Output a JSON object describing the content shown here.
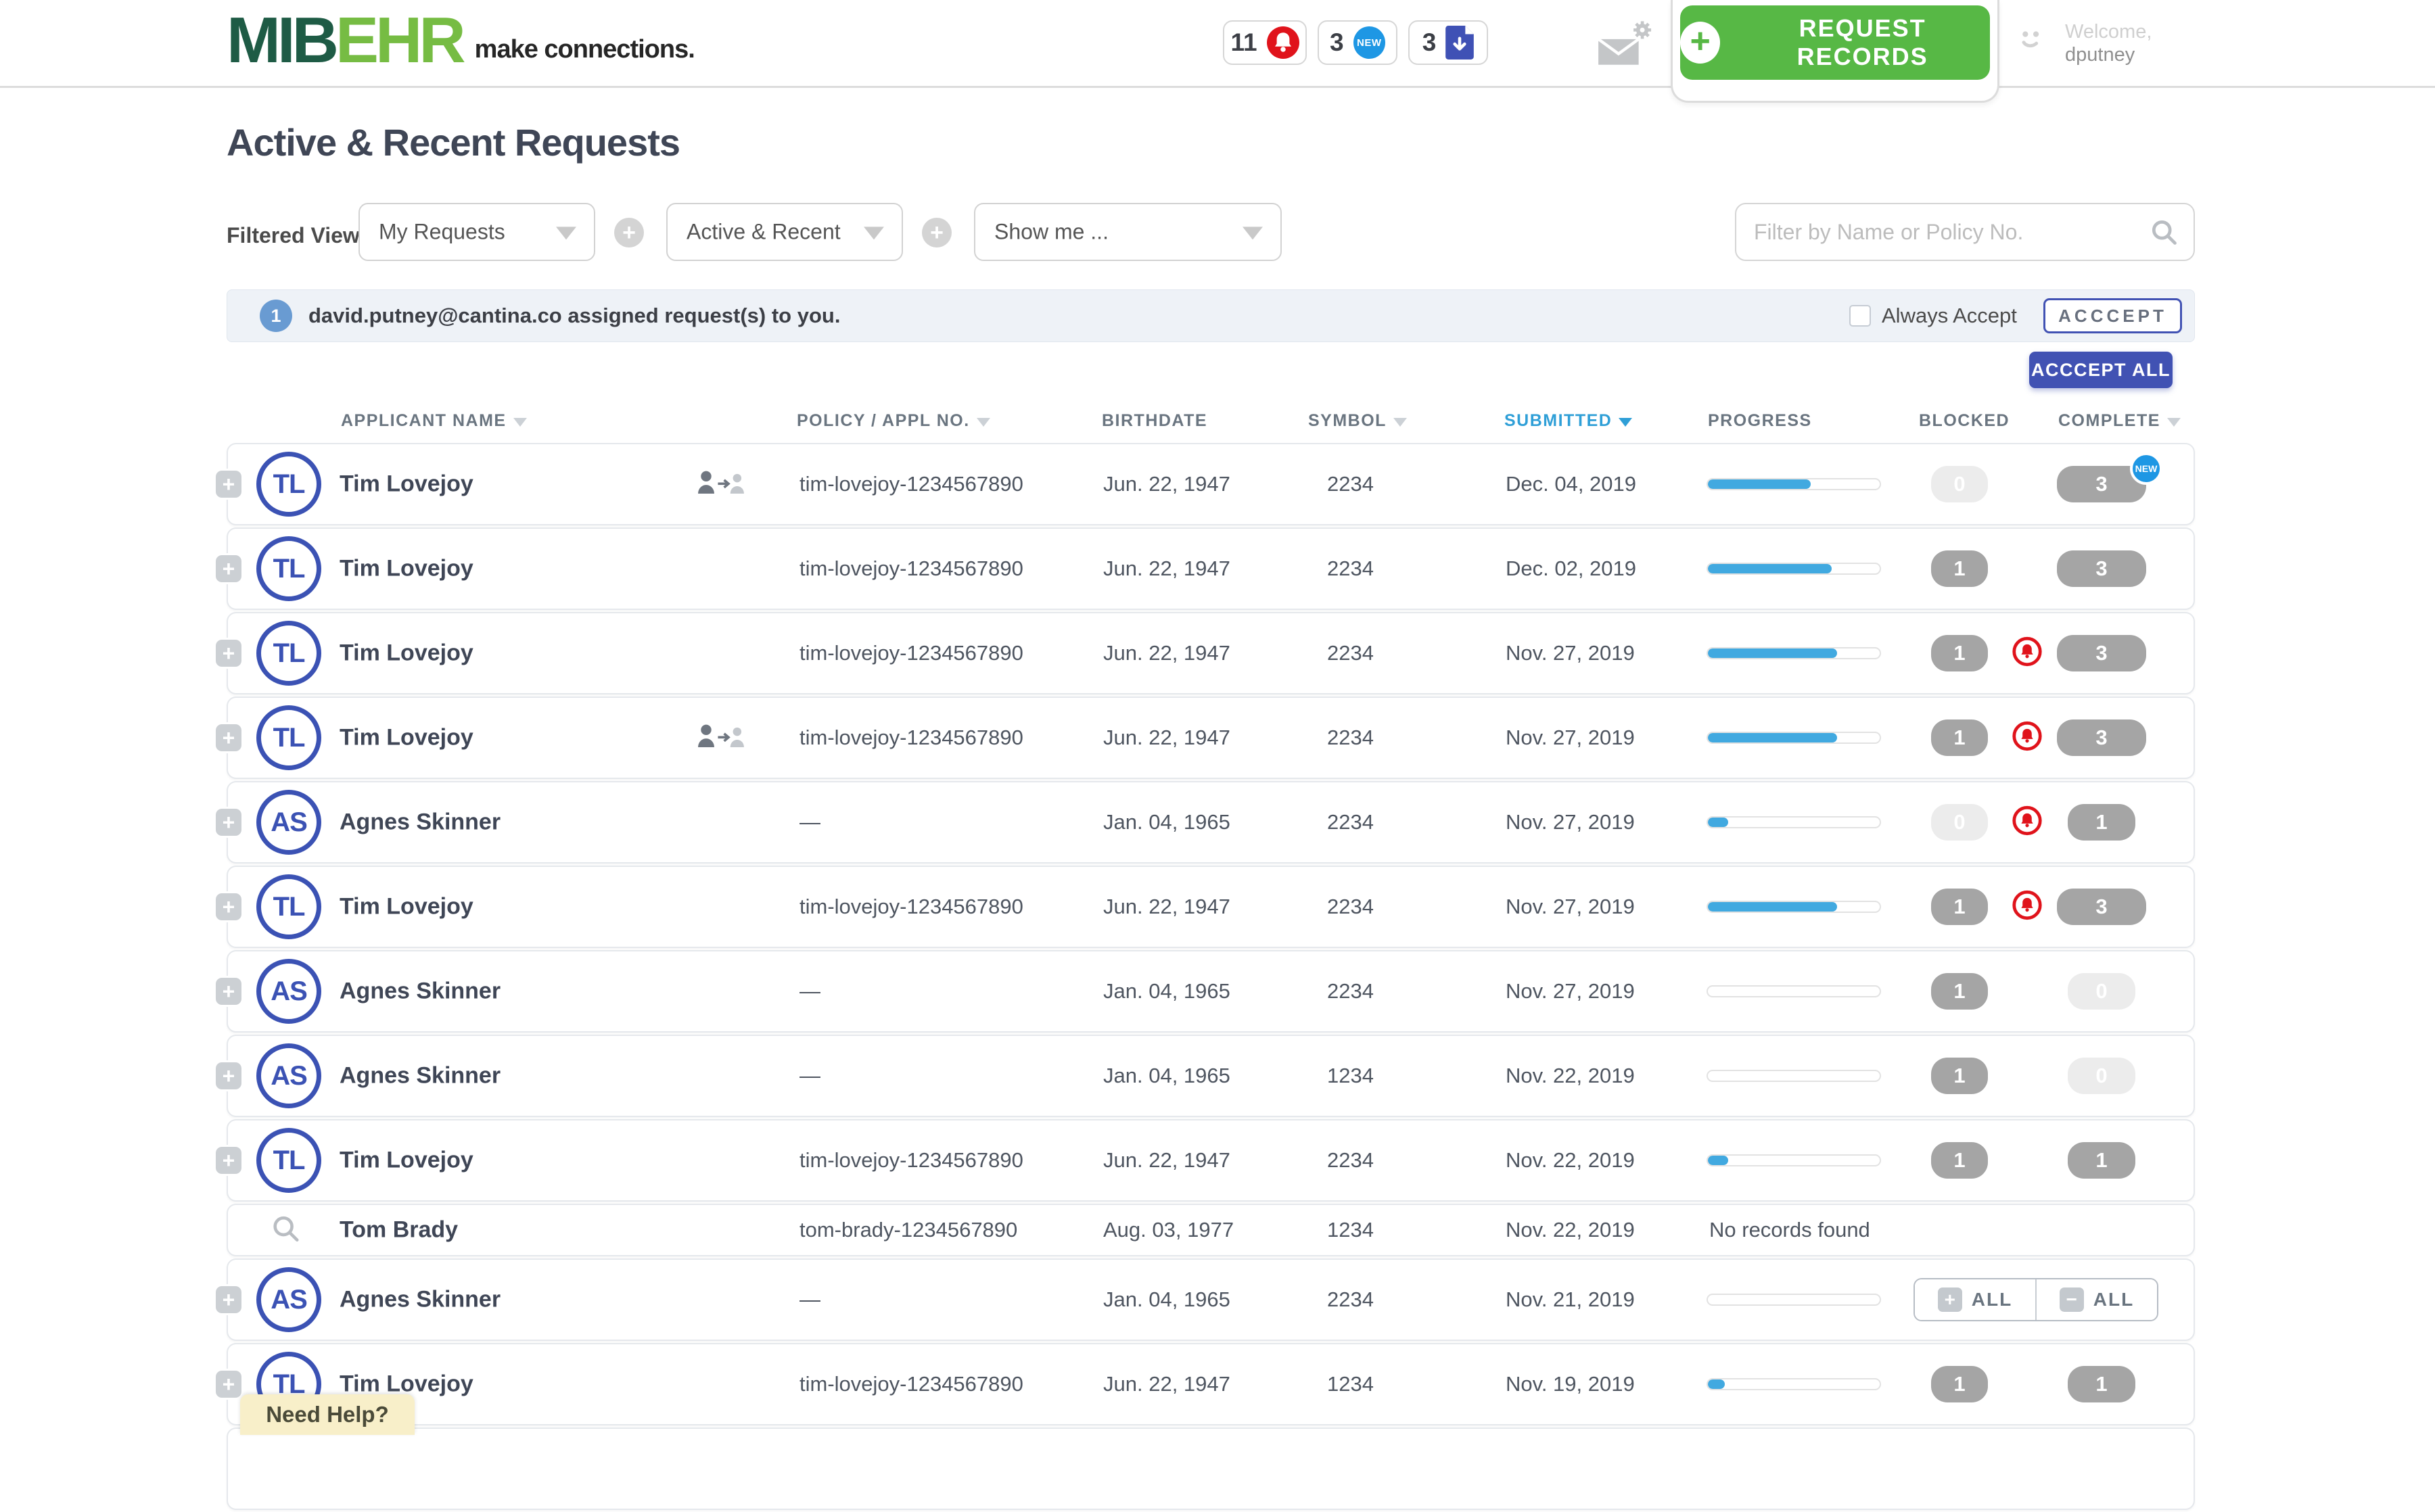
{
  "header": {
    "logo": {
      "mib": "MIB",
      "ehr": "EHR",
      "tagline": "make connections."
    },
    "badges": [
      {
        "count": "11",
        "icon": "bell-alert",
        "color": "#e0131b"
      },
      {
        "count": "3",
        "icon": "new",
        "color": "#1e97e4",
        "icon_text": "NEW"
      },
      {
        "count": "3",
        "icon": "file-download",
        "color": "#3f51b5"
      }
    ],
    "request_records_label": "REQUEST RECORDS",
    "welcome_line1": "Welcome,",
    "welcome_line2": "dputney"
  },
  "page": {
    "title": "Active & Recent Requests"
  },
  "filters": {
    "label": "Filtered View",
    "dropdowns": [
      {
        "value": "My Requests"
      },
      {
        "value": "Active & Recent"
      },
      {
        "value": "Show me ..."
      }
    ],
    "search_placeholder": "Filter by Name or Policy No."
  },
  "notification": {
    "count": "1",
    "message": "david.putney@cantina.co assigned request(s) to you.",
    "always_accept_label": "Always Accept",
    "accept_label": "ACCCEPT",
    "accept_all_label": "ACCCEPT ALL"
  },
  "table": {
    "columns": [
      {
        "label": "APPLICANT NAME",
        "sortable": true
      },
      {
        "label": "POLICY / APPL NO.",
        "sortable": true
      },
      {
        "label": "BIRTHDATE",
        "sortable": false
      },
      {
        "label": "SYMBOL",
        "sortable": true
      },
      {
        "label": "SUBMITTED",
        "sortable": true,
        "active": true,
        "direction": "desc"
      },
      {
        "label": "PROGRESS",
        "sortable": false
      },
      {
        "label": "BLOCKED",
        "sortable": false
      },
      {
        "label": "COMPLETE",
        "sortable": true
      }
    ],
    "rows": [
      {
        "type": "standard",
        "expandable": true,
        "initials": "TL",
        "name": "Tim Lovejoy",
        "transfer": true,
        "policy": "tim-lovejoy-1234567890",
        "birthdate": "Jun. 22, 1947",
        "symbol": "2234",
        "submitted": "Dec. 04, 2019",
        "has_progress": true,
        "progress_pct": 60,
        "blocked": "0",
        "blocked_muted": true,
        "bell": false,
        "complete": "3",
        "complete_wide": true,
        "new_badge": true
      },
      {
        "type": "standard",
        "expandable": true,
        "initials": "TL",
        "name": "Tim Lovejoy",
        "policy": "tim-lovejoy-1234567890",
        "birthdate": "Jun. 22, 1947",
        "symbol": "2234",
        "submitted": "Dec. 02, 2019",
        "has_progress": true,
        "progress_pct": 72,
        "blocked": "1",
        "bell": false,
        "complete": "3",
        "complete_wide": true
      },
      {
        "type": "standard",
        "expandable": true,
        "initials": "TL",
        "name": "Tim Lovejoy",
        "policy": "tim-lovejoy-1234567890",
        "birthdate": "Jun. 22, 1947",
        "symbol": "2234",
        "submitted": "Nov. 27, 2019",
        "has_progress": true,
        "progress_pct": 75,
        "blocked": "1",
        "bell": true,
        "complete": "3",
        "complete_wide": true
      },
      {
        "type": "standard",
        "expandable": true,
        "initials": "TL",
        "name": "Tim Lovejoy",
        "transfer": true,
        "policy": "tim-lovejoy-1234567890",
        "birthdate": "Jun. 22, 1947",
        "symbol": "2234",
        "submitted": "Nov. 27, 2019",
        "has_progress": true,
        "progress_pct": 75,
        "blocked": "1",
        "bell": true,
        "complete": "3",
        "complete_wide": true
      },
      {
        "type": "standard",
        "expandable": true,
        "initials": "AS",
        "name": "Agnes Skinner",
        "policy": "—",
        "birthdate": "Jan. 04, 1965",
        "symbol": "2234",
        "submitted": "Nov. 27, 2019",
        "has_progress": true,
        "progress_pct": 12,
        "blocked": "0",
        "blocked_muted": true,
        "bell": true,
        "complete": "1"
      },
      {
        "type": "standard",
        "expandable": true,
        "initials": "TL",
        "name": "Tim Lovejoy",
        "policy": "tim-lovejoy-1234567890",
        "birthdate": "Jun. 22, 1947",
        "symbol": "2234",
        "submitted": "Nov. 27, 2019",
        "has_progress": true,
        "progress_pct": 75,
        "blocked": "1",
        "bell": true,
        "complete": "3",
        "complete_wide": true
      },
      {
        "type": "standard",
        "expandable": true,
        "initials": "AS",
        "name": "Agnes Skinner",
        "policy": "—",
        "birthdate": "Jan. 04, 1965",
        "symbol": "2234",
        "submitted": "Nov. 27, 2019",
        "has_progress": true,
        "progress_pct": 0,
        "blocked": "1",
        "bell": false,
        "complete": "0",
        "complete_muted": true
      },
      {
        "type": "standard",
        "expandable": true,
        "initials": "AS",
        "name": "Agnes Skinner",
        "policy": "—",
        "birthdate": "Jan. 04, 1965",
        "symbol": "1234",
        "submitted": "Nov. 22, 2019",
        "has_progress": true,
        "progress_pct": 0,
        "blocked": "1",
        "bell": false,
        "complete": "0",
        "complete_muted": true
      },
      {
        "type": "standard",
        "expandable": true,
        "initials": "TL",
        "name": "Tim Lovejoy",
        "policy": "tim-lovejoy-1234567890",
        "birthdate": "Jun. 22, 1947",
        "symbol": "2234",
        "submitted": "Nov. 22, 2019",
        "has_progress": true,
        "progress_pct": 12,
        "blocked": "1",
        "bell": false,
        "complete": "1"
      },
      {
        "type": "search",
        "search_icon": true,
        "name": "Tom Brady",
        "policy": "tom-brady-1234567890",
        "birthdate": "Aug. 03, 1977",
        "symbol": "1234",
        "submitted": "Nov. 22, 2019",
        "status": "No records found"
      },
      {
        "type": "standard",
        "expandable": true,
        "initials": "AS",
        "name": "Agnes Skinner",
        "policy": "—",
        "birthdate": "Jan. 04, 1965",
        "symbol": "2234",
        "submitted": "Nov. 21, 2019",
        "has_progress": true,
        "progress_pct": 0,
        "actions": true,
        "actions_add": "ALL",
        "actions_remove": "ALL"
      },
      {
        "type": "standard",
        "expandable": true,
        "initials": "TL",
        "name": "Tim Lovejoy",
        "policy": "tim-lovejoy-1234567890",
        "birthdate": "Jun. 22, 1947",
        "symbol": "1234",
        "submitted": "Nov. 19, 2019",
        "has_progress": true,
        "progress_pct": 10,
        "blocked": "1",
        "bell": false,
        "complete": "1"
      },
      {
        "type": "partial"
      }
    ]
  },
  "help_tab_label": "Need Help?",
  "colors": {
    "brand_green_dark": "#1e5b45",
    "brand_green_light": "#76bc43",
    "cta_green": "#57b845",
    "indigo": "#4152b3",
    "sky_blue": "#2f9fd7",
    "progress_blue": "#41a9e0",
    "alert_red": "#e0131b",
    "new_blue": "#1e97e4",
    "pill_gray": "#a5a5a5"
  }
}
